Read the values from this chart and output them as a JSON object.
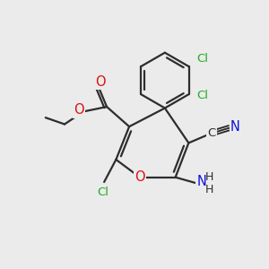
{
  "bg_color": "#ebebeb",
  "bond_color": "#2d2d2d",
  "bond_width": 1.6,
  "colors": {
    "N": "#1010dd",
    "O": "#dd1010",
    "Cl": "#22aa22",
    "C": "#2d2d2d",
    "black": "#2d2d2d"
  }
}
